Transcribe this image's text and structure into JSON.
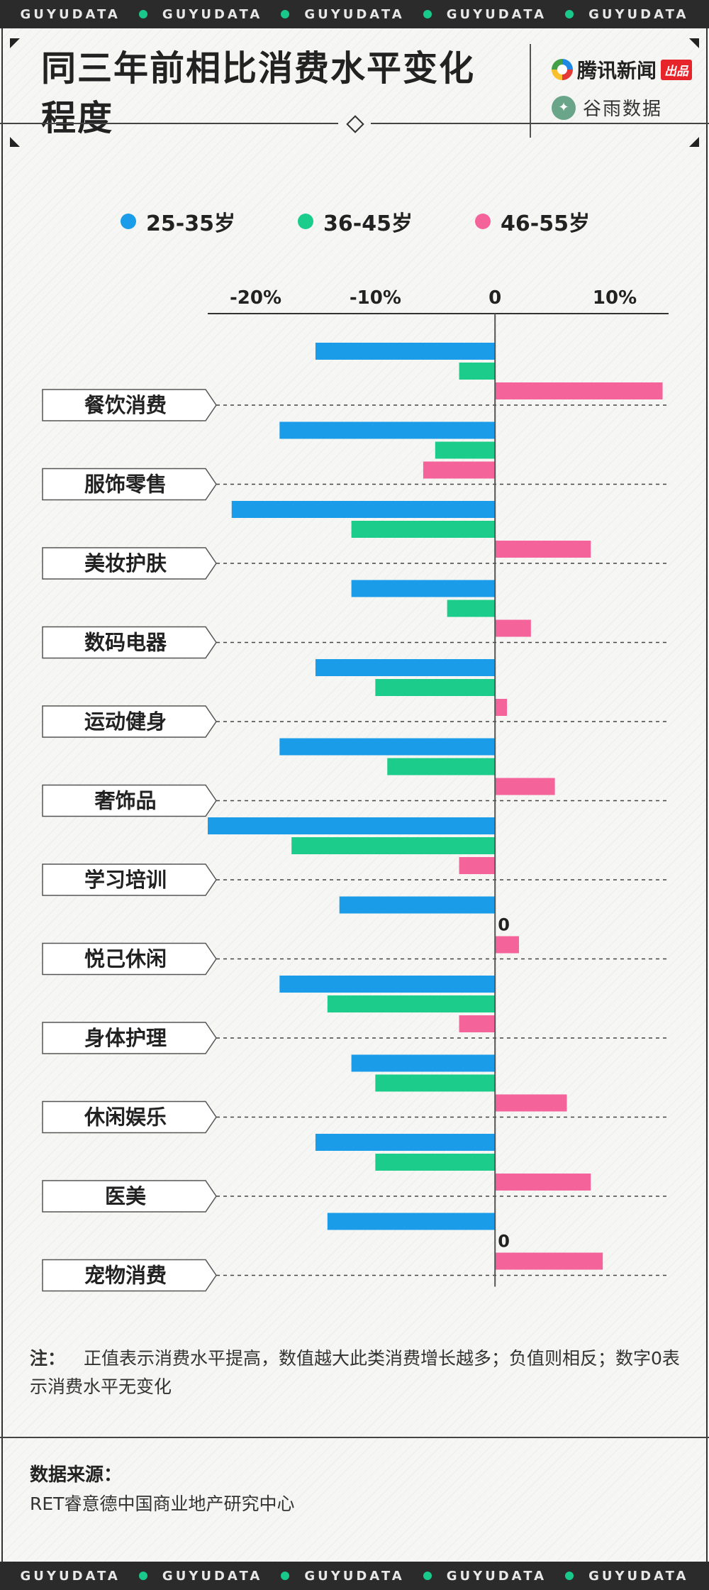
{
  "stripe": {
    "word": "GUYUDATA"
  },
  "title": "同三年前相比消费水平变化程度",
  "brand": {
    "tencent": "腾讯新闻",
    "tencent_tag": "出品",
    "guyu": "谷雨数据"
  },
  "chart_data": {
    "type": "bar",
    "orientation": "horizontal",
    "title": "同三年前相比消费水平变化程度",
    "xlim": [
      -24,
      14.5
    ],
    "xticks": [
      -20,
      -10,
      0,
      10
    ],
    "xtick_labels": [
      "-20%",
      "-10%",
      "0",
      "10%"
    ],
    "legend_position": "top",
    "categories": [
      "餐饮消费",
      "服饰零售",
      "美妆护肤",
      "数码电器",
      "运动健身",
      "奢饰品",
      "学习培训",
      "悦己休闲",
      "身体护理",
      "休闲娱乐",
      "医美",
      "宠物消费"
    ],
    "series": [
      {
        "name": "25-35岁",
        "color": "#1a9ce8",
        "values": [
          -15,
          -18,
          -22,
          -12,
          -15,
          -18,
          -24,
          -13,
          -18,
          -12,
          -15,
          -14
        ]
      },
      {
        "name": "36-45岁",
        "color": "#1ccc8a",
        "values": [
          -3,
          -5,
          -12,
          -4,
          -10,
          -9,
          -17,
          0,
          -14,
          -10,
          -10,
          0
        ]
      },
      {
        "name": "46-55岁",
        "color": "#f4639a",
        "values": [
          14,
          -6,
          8,
          3,
          1,
          5,
          -3,
          2,
          -3,
          6,
          8,
          9
        ]
      }
    ],
    "zero_labels": [
      {
        "category_index": 7,
        "series_index": 1,
        "text": "0"
      },
      {
        "category_index": 11,
        "series_index": 1,
        "text": "0"
      }
    ]
  },
  "note": {
    "head": "注：",
    "text": "正值表示消费水平提高，数值越大此类消费增长越多；负值则相反；数字0表示消费水平无变化"
  },
  "source": {
    "title": "数据来源：",
    "text": "RET睿意德中国商业地产研究中心"
  }
}
